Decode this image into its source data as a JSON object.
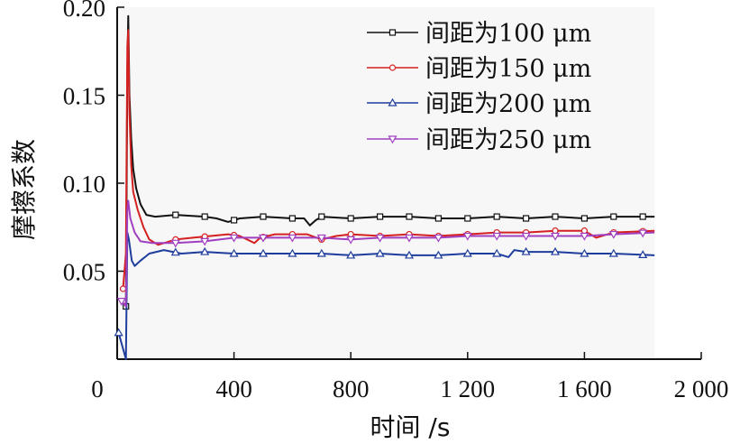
{
  "chart_data": {
    "type": "line",
    "title": "",
    "xlabel": "时间 /s",
    "ylabel": "摩擦系数",
    "xlim": [
      0,
      2000
    ],
    "ylim": [
      0.0,
      0.2
    ],
    "x_ticks": [
      {
        "value": 0,
        "label": "0"
      },
      {
        "value": 400,
        "label": "400"
      },
      {
        "value": 800,
        "label": "800"
      },
      {
        "value": 1200,
        "label": "1 200"
      },
      {
        "value": 1600,
        "label": "1 600"
      },
      {
        "value": 2000,
        "label": "2 000"
      }
    ],
    "y_ticks": [
      {
        "value": 0.05,
        "label": "0.05"
      },
      {
        "value": 0.1,
        "label": "0.10"
      },
      {
        "value": 0.15,
        "label": "0.15"
      },
      {
        "value": 0.2,
        "label": "0.20"
      }
    ],
    "grid": false,
    "legend_position": "top-right",
    "series": [
      {
        "name": "间距为100 μm",
        "color": "#111111",
        "marker": "square",
        "points": [
          [
            30,
            0.03
          ],
          [
            35,
            0.165
          ],
          [
            38,
            0.195
          ],
          [
            42,
            0.15
          ],
          [
            48,
            0.125
          ],
          [
            55,
            0.108
          ],
          [
            65,
            0.097
          ],
          [
            80,
            0.088
          ],
          [
            100,
            0.082
          ],
          [
            130,
            0.081
          ],
          [
            200,
            0.082
          ],
          [
            300,
            0.081
          ],
          [
            340,
            0.08
          ],
          [
            380,
            0.078
          ],
          [
            420,
            0.08
          ],
          [
            500,
            0.081
          ],
          [
            600,
            0.08
          ],
          [
            640,
            0.08
          ],
          [
            660,
            0.076
          ],
          [
            680,
            0.079
          ],
          [
            700,
            0.081
          ],
          [
            800,
            0.08
          ],
          [
            900,
            0.081
          ],
          [
            1000,
            0.081
          ],
          [
            1100,
            0.08
          ],
          [
            1200,
            0.08
          ],
          [
            1300,
            0.081
          ],
          [
            1400,
            0.08
          ],
          [
            1500,
            0.081
          ],
          [
            1600,
            0.08
          ],
          [
            1700,
            0.081
          ],
          [
            1780,
            0.081
          ],
          [
            1840,
            0.081
          ]
        ]
      },
      {
        "name": "间距为150 μm",
        "color": "#d42020",
        "marker": "circle",
        "points": [
          [
            20,
            0.04
          ],
          [
            30,
            0.06
          ],
          [
            35,
            0.178
          ],
          [
            38,
            0.187
          ],
          [
            42,
            0.14
          ],
          [
            48,
            0.11
          ],
          [
            55,
            0.095
          ],
          [
            70,
            0.085
          ],
          [
            90,
            0.075
          ],
          [
            110,
            0.068
          ],
          [
            140,
            0.065
          ],
          [
            200,
            0.068
          ],
          [
            260,
            0.069
          ],
          [
            320,
            0.07
          ],
          [
            380,
            0.071
          ],
          [
            420,
            0.07
          ],
          [
            470,
            0.066
          ],
          [
            490,
            0.069
          ],
          [
            540,
            0.071
          ],
          [
            600,
            0.071
          ],
          [
            650,
            0.071
          ],
          [
            700,
            0.068
          ],
          [
            750,
            0.07
          ],
          [
            800,
            0.071
          ],
          [
            900,
            0.07
          ],
          [
            1000,
            0.071
          ],
          [
            1100,
            0.07
          ],
          [
            1200,
            0.071
          ],
          [
            1300,
            0.072
          ],
          [
            1400,
            0.072
          ],
          [
            1500,
            0.073
          ],
          [
            1600,
            0.073
          ],
          [
            1640,
            0.069
          ],
          [
            1700,
            0.072
          ],
          [
            1840,
            0.073
          ]
        ]
      },
      {
        "name": "间距为200 μm",
        "color": "#1f3d9c",
        "marker": "triangle-up",
        "points": [
          [
            5,
            0.015
          ],
          [
            30,
            0.0
          ],
          [
            35,
            0.072
          ],
          [
            40,
            0.068
          ],
          [
            50,
            0.056
          ],
          [
            60,
            0.053
          ],
          [
            80,
            0.056
          ],
          [
            110,
            0.06
          ],
          [
            160,
            0.062
          ],
          [
            220,
            0.06
          ],
          [
            300,
            0.061
          ],
          [
            400,
            0.06
          ],
          [
            500,
            0.06
          ],
          [
            600,
            0.06
          ],
          [
            700,
            0.06
          ],
          [
            800,
            0.059
          ],
          [
            900,
            0.06
          ],
          [
            1000,
            0.059
          ],
          [
            1100,
            0.059
          ],
          [
            1200,
            0.06
          ],
          [
            1300,
            0.06
          ],
          [
            1340,
            0.058
          ],
          [
            1360,
            0.062
          ],
          [
            1400,
            0.061
          ],
          [
            1500,
            0.061
          ],
          [
            1600,
            0.06
          ],
          [
            1700,
            0.06
          ],
          [
            1840,
            0.059
          ]
        ]
      },
      {
        "name": "间距为250 μm",
        "color": "#a040c0",
        "marker": "triangle-down",
        "points": [
          [
            15,
            0.033
          ],
          [
            30,
            0.03
          ],
          [
            35,
            0.085
          ],
          [
            38,
            0.09
          ],
          [
            45,
            0.08
          ],
          [
            60,
            0.072
          ],
          [
            80,
            0.067
          ],
          [
            120,
            0.066
          ],
          [
            200,
            0.066
          ],
          [
            300,
            0.067
          ],
          [
            400,
            0.069
          ],
          [
            500,
            0.069
          ],
          [
            600,
            0.069
          ],
          [
            700,
            0.069
          ],
          [
            800,
            0.068
          ],
          [
            900,
            0.069
          ],
          [
            1000,
            0.069
          ],
          [
            1100,
            0.069
          ],
          [
            1200,
            0.07
          ],
          [
            1300,
            0.07
          ],
          [
            1400,
            0.07
          ],
          [
            1500,
            0.07
          ],
          [
            1600,
            0.07
          ],
          [
            1700,
            0.071
          ],
          [
            1840,
            0.072
          ]
        ]
      }
    ]
  }
}
